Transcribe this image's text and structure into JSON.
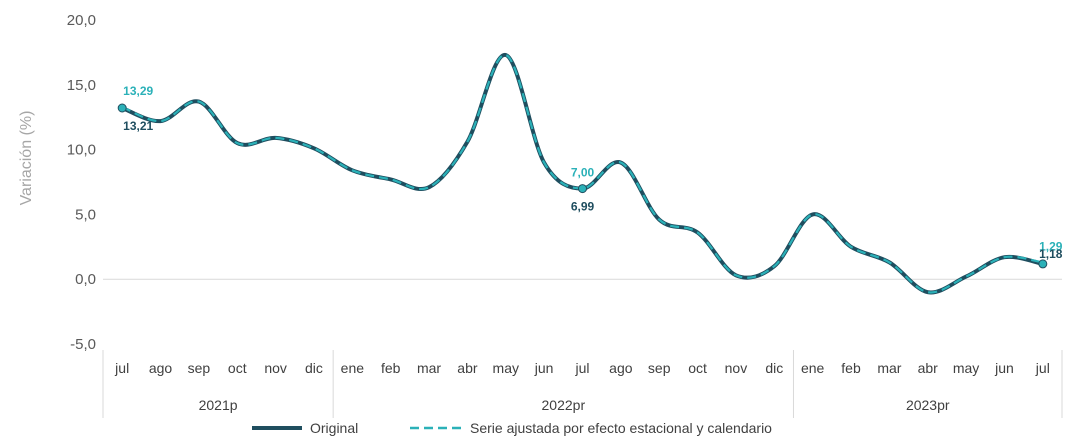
{
  "chart_data": {
    "type": "line",
    "ylabel": "Variación (%)",
    "ylim": [
      -5,
      20
    ],
    "yticks": [
      "20,0",
      "15,0",
      "10,0",
      "5,0",
      "0,0",
      "-5,0"
    ],
    "ytick_values": [
      20,
      15,
      10,
      5,
      0,
      -5
    ],
    "categories": [
      "jul",
      "ago",
      "sep",
      "oct",
      "nov",
      "dic",
      "ene",
      "feb",
      "mar",
      "abr",
      "may",
      "jun",
      "jul",
      "ago",
      "sep",
      "oct",
      "nov",
      "dic",
      "ene",
      "feb",
      "mar",
      "abr",
      "may",
      "jun",
      "jul"
    ],
    "groups": [
      {
        "label": "2021p",
        "count": 6
      },
      {
        "label": "2022pr",
        "count": 12
      },
      {
        "label": "2023pr",
        "count": 7
      }
    ],
    "series": [
      {
        "name": "Original",
        "color": "#1f4e5f",
        "values": [
          13.21,
          12.2,
          13.7,
          10.5,
          10.9,
          10.1,
          8.4,
          7.7,
          7.1,
          10.6,
          17.3,
          9.0,
          6.99,
          9.0,
          4.6,
          3.6,
          0.3,
          1.0,
          5.0,
          2.5,
          1.3,
          -1.0,
          0.2,
          1.7,
          1.18
        ]
      },
      {
        "name": "Serie ajustada por efecto estacional y calendario",
        "color": "#2bb1b8",
        "values": [
          13.29,
          12.2,
          13.7,
          10.5,
          10.9,
          10.1,
          8.4,
          7.7,
          7.1,
          10.6,
          17.3,
          9.0,
          7.0,
          9.0,
          4.6,
          3.6,
          0.3,
          1.0,
          5.0,
          2.5,
          1.3,
          -1.0,
          0.2,
          1.7,
          1.29
        ]
      }
    ],
    "data_labels": [
      {
        "series": 1,
        "index": 0,
        "text": "13,29",
        "position": "above"
      },
      {
        "series": 0,
        "index": 0,
        "text": "13,21",
        "position": "below"
      },
      {
        "series": 1,
        "index": 12,
        "text": "7,00",
        "position": "above"
      },
      {
        "series": 0,
        "index": 12,
        "text": "6,99",
        "position": "below"
      },
      {
        "series": 1,
        "index": 24,
        "text": "1,29",
        "position": "above"
      },
      {
        "series": 0,
        "index": 24,
        "text": "1,18",
        "position": "right"
      }
    ],
    "legend_position": "bottom",
    "grid": false
  }
}
